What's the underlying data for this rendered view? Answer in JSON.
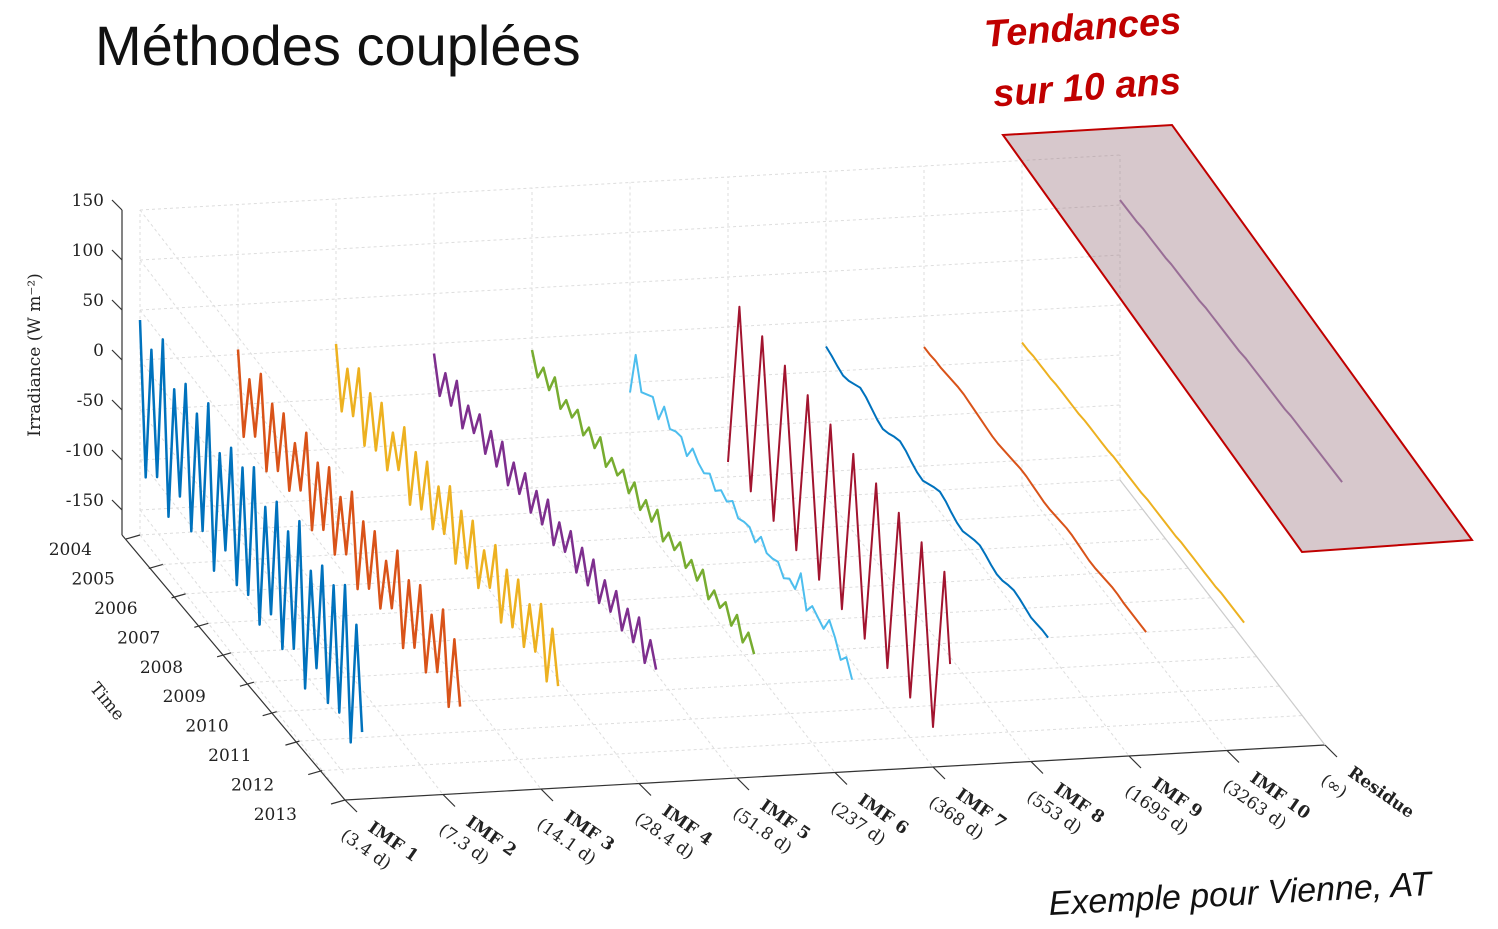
{
  "title": "Méthodes couplées",
  "annotation": [
    "Tendances",
    "sur 10 ans"
  ],
  "footer": "Exemple pour Vienne, AT",
  "chart_data": {
    "type": "line3d",
    "zlabel": "Irradiance (W m⁻²)",
    "ylabel": "Time",
    "categories": [
      "IMF 1",
      "IMF 2",
      "IMF 3",
      "IMF 4",
      "IMF 5",
      "IMF 6",
      "IMF 7",
      "IMF 8",
      "IMF 9",
      "IMF 10",
      "Residue"
    ],
    "category_sublabels": [
      "(3.4 d)",
      "(7.3 d)",
      "(14.1 d)",
      "(28.4 d)",
      "(51.8 d)",
      "(237 d)",
      "(368 d)",
      "(553 d)",
      "(1695 d)",
      "(3263 d)",
      "(∞)"
    ],
    "zlim": [
      -175,
      150
    ],
    "zticks": [
      150,
      100,
      50,
      0,
      -50,
      -100,
      -150
    ],
    "ylim": [
      2004,
      2013
    ],
    "yticks": [
      2004,
      2005,
      2006,
      2007,
      2008,
      2009,
      2010,
      2011,
      2012,
      2013
    ],
    "grid": true,
    "x": [
      2004,
      2004.25,
      2004.5,
      2004.75,
      2005,
      2005.25,
      2005.5,
      2005.75,
      2006,
      2006.25,
      2006.5,
      2006.75,
      2007,
      2007.25,
      2007.5,
      2007.75,
      2008,
      2008.25,
      2008.5,
      2008.75,
      2009,
      2009.25,
      2009.5,
      2009.75,
      2010,
      2010.25,
      2010.5,
      2010.75,
      2011,
      2011.25,
      2011.5,
      2011.75,
      2012,
      2012.25,
      2012.5,
      2012.75,
      2013,
      2013.25,
      2013.5,
      2013.75
    ],
    "series": [
      {
        "color": "#0072bd",
        "values": [
          40,
          -110,
          25,
          -95,
          50,
          -120,
          15,
          -85,
          35,
          -105,
          20,
          -90,
          45,
          -115,
          10,
          -80,
          30,
          -100,
          25,
          -95,
          40,
          -110,
          15,
          -85,
          35,
          -105,
          20,
          -90,
          45,
          -115,
          10,
          -80,
          30,
          -100,
          25,
          -95,
          40,
          -110,
          15,
          -85
        ]
      },
      {
        "color": "#d95319",
        "values": [
          5,
          -75,
          -10,
          -60,
          10,
          -80,
          -5,
          -65,
          0,
          -70,
          -15,
          -55,
          10,
          -80,
          -5,
          -65,
          5,
          -75,
          -10,
          -60,
          10,
          -80,
          -5,
          -65,
          0,
          -70,
          -15,
          -55,
          10,
          -80,
          -5,
          -65,
          5,
          -75,
          -10,
          -60,
          10,
          -80,
          -5,
          -65
        ]
      },
      {
        "color": "#edb120",
        "values": [
          5,
          -55,
          -5,
          -45,
          10,
          -60,
          0,
          -50,
          5,
          -55,
          -10,
          -40,
          10,
          -60,
          0,
          -50,
          5,
          -55,
          -5,
          -45,
          10,
          -60,
          0,
          -50,
          5,
          -55,
          -10,
          -40,
          10,
          -60,
          0,
          -50,
          5,
          -55,
          -5,
          -45,
          10,
          -60,
          0,
          -50
        ]
      },
      {
        "color": "#7e2f8e",
        "values": [
          -10,
          -45,
          -15,
          -40,
          -8,
          -48,
          -18,
          -38,
          -12,
          -44,
          -14,
          -42,
          -10,
          -46,
          -16,
          -40,
          -12,
          -44,
          -15,
          -41,
          -9,
          -47,
          -17,
          -39,
          -11,
          -45,
          -13,
          -43,
          -10,
          -46,
          -16,
          -40,
          -12,
          -44,
          -15,
          -41,
          -9,
          -47,
          -17,
          -39
        ]
      },
      {
        "color": "#77ac30",
        "values": [
          -12,
          -32,
          -15,
          -30,
          -10,
          -34,
          -18,
          -28,
          -13,
          -31,
          -16,
          -29,
          -11,
          -33,
          -17,
          -27,
          -14,
          -30,
          -12,
          -32,
          -15,
          -29,
          -10,
          -34,
          -18,
          -28,
          -13,
          -31,
          -16,
          -29,
          -11,
          -33,
          -17,
          -27,
          -14,
          -30,
          -12,
          -32,
          -15,
          -29
        ]
      },
      {
        "color": "#4dbeee",
        "values": [
          -60,
          -15,
          -45,
          -40,
          -35,
          -50,
          -30,
          -45,
          -40,
          -38,
          -50,
          -35,
          -42,
          -45,
          -38,
          -48,
          -40,
          -44,
          -36,
          -46,
          -42,
          -40,
          -48,
          -35,
          -44,
          -42,
          -38,
          -47,
          -40,
          -43,
          -20,
          -50,
          -38,
          -42,
          -46,
          -30,
          -40,
          -55,
          -45,
          -60
        ]
      },
      {
        "color": "#a2142f",
        "values": [
          -135,
          -50,
          35,
          -50,
          -135,
          -50,
          35,
          -50,
          -135,
          -50,
          35,
          -50,
          -135,
          -50,
          35,
          -50,
          -135,
          -50,
          35,
          -50,
          -135,
          -50,
          35,
          -50,
          -135,
          -50,
          35,
          -50,
          -135,
          -50,
          35,
          -50,
          -135,
          -50,
          35,
          -50,
          -135,
          -50,
          35,
          -50
        ]
      },
      {
        "color": "#0072bd",
        "values": [
          -25,
          -27,
          -30,
          -32,
          -30,
          -26,
          -22,
          -24,
          -28,
          -32,
          -34,
          -31,
          -27,
          -24,
          -26,
          -30,
          -33,
          -34,
          -30,
          -26,
          -23,
          -25,
          -29,
          -32,
          -33,
          -30,
          -27,
          -25,
          -27,
          -30,
          -32,
          -31,
          -28,
          -26,
          -27,
          -29,
          -31,
          -30,
          -29,
          -29
        ]
      },
      {
        "color": "#d95319",
        "values": [
          -31,
          -31,
          -30,
          -30,
          -29,
          -28,
          -27,
          -27,
          -28,
          -29,
          -30,
          -31,
          -32,
          -32,
          -31,
          -30,
          -29,
          -28,
          -28,
          -29,
          -30,
          -31,
          -31,
          -30,
          -29,
          -28,
          -28,
          -29,
          -30,
          -31,
          -31,
          -30,
          -29,
          -28,
          -28,
          -29,
          -29,
          -29,
          -29,
          -29
        ]
      },
      {
        "color": "#edb120",
        "values": [
          -32,
          -32,
          -31,
          -31,
          -31,
          -31,
          -30,
          -30,
          -30,
          -30,
          -30,
          -29,
          -29,
          -29,
          -29,
          -29,
          -28,
          -28,
          -28,
          -28,
          -28,
          -28,
          -27,
          -27,
          -27,
          -27,
          -27,
          -27,
          -26,
          -26,
          -26,
          -26,
          -26,
          -26,
          -26,
          -25,
          -25,
          -25,
          -25,
          -25
        ]
      },
      {
        "color": "#9b6fa8",
        "values": [
          105,
          105,
          105,
          105,
          106,
          106,
          106,
          106,
          106,
          107,
          107,
          107,
          107,
          107,
          107,
          108,
          108,
          108,
          108,
          108,
          108,
          108,
          109,
          109,
          109,
          109,
          109,
          109,
          109,
          109,
          110,
          110,
          110,
          110,
          110,
          110,
          110,
          110,
          110,
          110
        ]
      }
    ]
  }
}
